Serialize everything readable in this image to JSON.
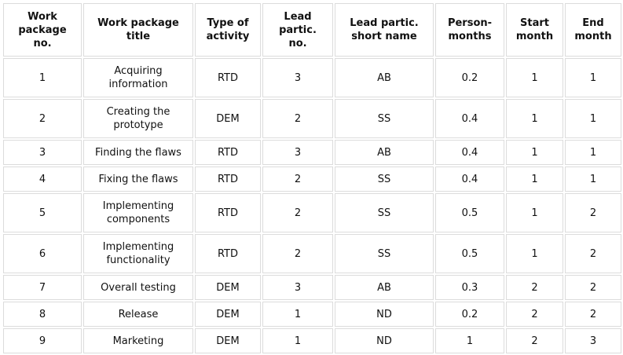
{
  "table": {
    "header": [
      "Work package no.",
      "Work package title",
      "Type of activity",
      "Lead partic. no.",
      "Lead partic. short name",
      "Person-months",
      "Start month",
      "End month"
    ],
    "rows": [
      [
        "1",
        "Acquiring information",
        "RTD",
        "3",
        "AB",
        "0.2",
        "1",
        "1"
      ],
      [
        "2",
        "Creating the prototype",
        "DEM",
        "2",
        "SS",
        "0.4",
        "1",
        "1"
      ],
      [
        "3",
        "Finding the flaws",
        "RTD",
        "3",
        "AB",
        "0.4",
        "1",
        "1"
      ],
      [
        "4",
        "Fixing the flaws",
        "RTD",
        "2",
        "SS",
        "0.4",
        "1",
        "1"
      ],
      [
        "5",
        "Implementing components",
        "RTD",
        "2",
        "SS",
        "0.5",
        "1",
        "2"
      ],
      [
        "6",
        "Implementing functionality",
        "RTD",
        "2",
        "SS",
        "0.5",
        "1",
        "2"
      ],
      [
        "7",
        "Overall testing",
        "DEM",
        "3",
        "AB",
        "0.3",
        "2",
        "2"
      ],
      [
        "8",
        "Release",
        "DEM",
        "1",
        "ND",
        "0.2",
        "2",
        "2"
      ],
      [
        "9",
        "Marketing",
        "DEM",
        "1",
        "ND",
        "1",
        "2",
        "3"
      ]
    ]
  }
}
